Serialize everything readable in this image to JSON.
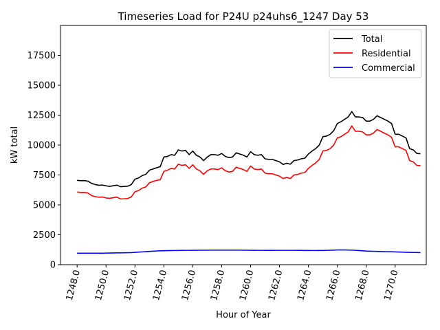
{
  "chart_data": {
    "type": "line",
    "title": "Timeseries Load for P24U p24uhs6_1247  Day 53",
    "xlabel": "Hour of Year",
    "ylabel": "kW total",
    "xlim": [
      1246.85,
      1272.15
    ],
    "ylim": [
      0,
      20000
    ],
    "xticks": [
      1248,
      1250,
      1252,
      1254,
      1256,
      1258,
      1260,
      1262,
      1264,
      1266,
      1268,
      1270
    ],
    "xtick_labels": [
      "1248.0",
      "1250.0",
      "1252.0",
      "1254.0",
      "1256.0",
      "1258.0",
      "1260.0",
      "1262.0",
      "1264.0",
      "1266.0",
      "1268.0",
      "1270.0"
    ],
    "yticks": [
      0,
      2500,
      5000,
      7500,
      10000,
      12500,
      15000,
      17500
    ],
    "ytick_labels": [
      "0",
      "2500",
      "5000",
      "7500",
      "10000",
      "12500",
      "15000",
      "17500"
    ],
    "legend_position": "top-right",
    "x_start": 1248.0,
    "x_step": 0.25,
    "series": [
      {
        "name": "Total",
        "color": "#000000",
        "values": [
          7050,
          7020,
          7030,
          6980,
          6800,
          6700,
          6640,
          6660,
          6590,
          6550,
          6600,
          6650,
          6520,
          6540,
          6560,
          6700,
          7150,
          7250,
          7450,
          7550,
          7900,
          8000,
          8100,
          8200,
          9000,
          9050,
          9200,
          9150,
          9600,
          9500,
          9550,
          9200,
          9500,
          9150,
          9000,
          8700,
          9000,
          9200,
          9200,
          9150,
          9300,
          9050,
          8950,
          9000,
          9350,
          9250,
          9150,
          9000,
          9450,
          9200,
          9150,
          9200,
          8850,
          8800,
          8800,
          8700,
          8600,
          8380,
          8480,
          8400,
          8700,
          8750,
          8850,
          8900,
          9250,
          9500,
          9700,
          10000,
          10700,
          10750,
          10900,
          11200,
          11800,
          11950,
          12150,
          12350,
          12800,
          12350,
          12350,
          12300,
          12000,
          12000,
          12150,
          12450,
          12300,
          12150,
          12000,
          11800,
          10900,
          10900,
          10750,
          10600,
          9700,
          9600,
          9300,
          9280
        ]
      },
      {
        "name": "Residential",
        "color": "#ff0000",
        "values": [
          6080,
          6030,
          6040,
          5990,
          5780,
          5690,
          5640,
          5660,
          5580,
          5550,
          5600,
          5650,
          5500,
          5510,
          5530,
          5670,
          6100,
          6200,
          6400,
          6500,
          6850,
          6950,
          7050,
          7100,
          7800,
          7900,
          8050,
          8000,
          8400,
          8300,
          8350,
          8050,
          8350,
          8000,
          7850,
          7550,
          7850,
          8000,
          8000,
          7950,
          8100,
          7850,
          7750,
          7800,
          8150,
          8050,
          7950,
          7800,
          8250,
          8000,
          7950,
          8000,
          7650,
          7600,
          7600,
          7500,
          7400,
          7200,
          7300,
          7200,
          7500,
          7550,
          7650,
          7700,
          8050,
          8300,
          8500,
          8800,
          9500,
          9550,
          9700,
          10000,
          10600,
          10700,
          10900,
          11100,
          11600,
          11150,
          11150,
          11100,
          10850,
          10850,
          11000,
          11300,
          11150,
          11000,
          10850,
          10650,
          9850,
          9850,
          9700,
          9550,
          8700,
          8600,
          8300,
          8280
        ]
      },
      {
        "name": "Commercial",
        "color": "#0000ff",
        "values": [
          960,
          960,
          960,
          960,
          960,
          960,
          960,
          960,
          970,
          975,
          980,
          985,
          990,
          995,
          1000,
          1010,
          1030,
          1050,
          1070,
          1090,
          1110,
          1130,
          1150,
          1160,
          1170,
          1175,
          1180,
          1185,
          1190,
          1195,
          1200,
          1200,
          1205,
          1205,
          1210,
          1210,
          1210,
          1215,
          1215,
          1215,
          1215,
          1215,
          1215,
          1215,
          1215,
          1215,
          1210,
          1210,
          1205,
          1205,
          1200,
          1200,
          1195,
          1195,
          1195,
          1200,
          1200,
          1200,
          1200,
          1200,
          1200,
          1195,
          1195,
          1190,
          1190,
          1185,
          1185,
          1190,
          1190,
          1200,
          1210,
          1220,
          1230,
          1230,
          1230,
          1225,
          1215,
          1200,
          1180,
          1160,
          1140,
          1130,
          1120,
          1110,
          1100,
          1090,
          1085,
          1080,
          1070,
          1060,
          1050,
          1040,
          1030,
          1020,
          1015,
          1010
        ]
      }
    ]
  }
}
